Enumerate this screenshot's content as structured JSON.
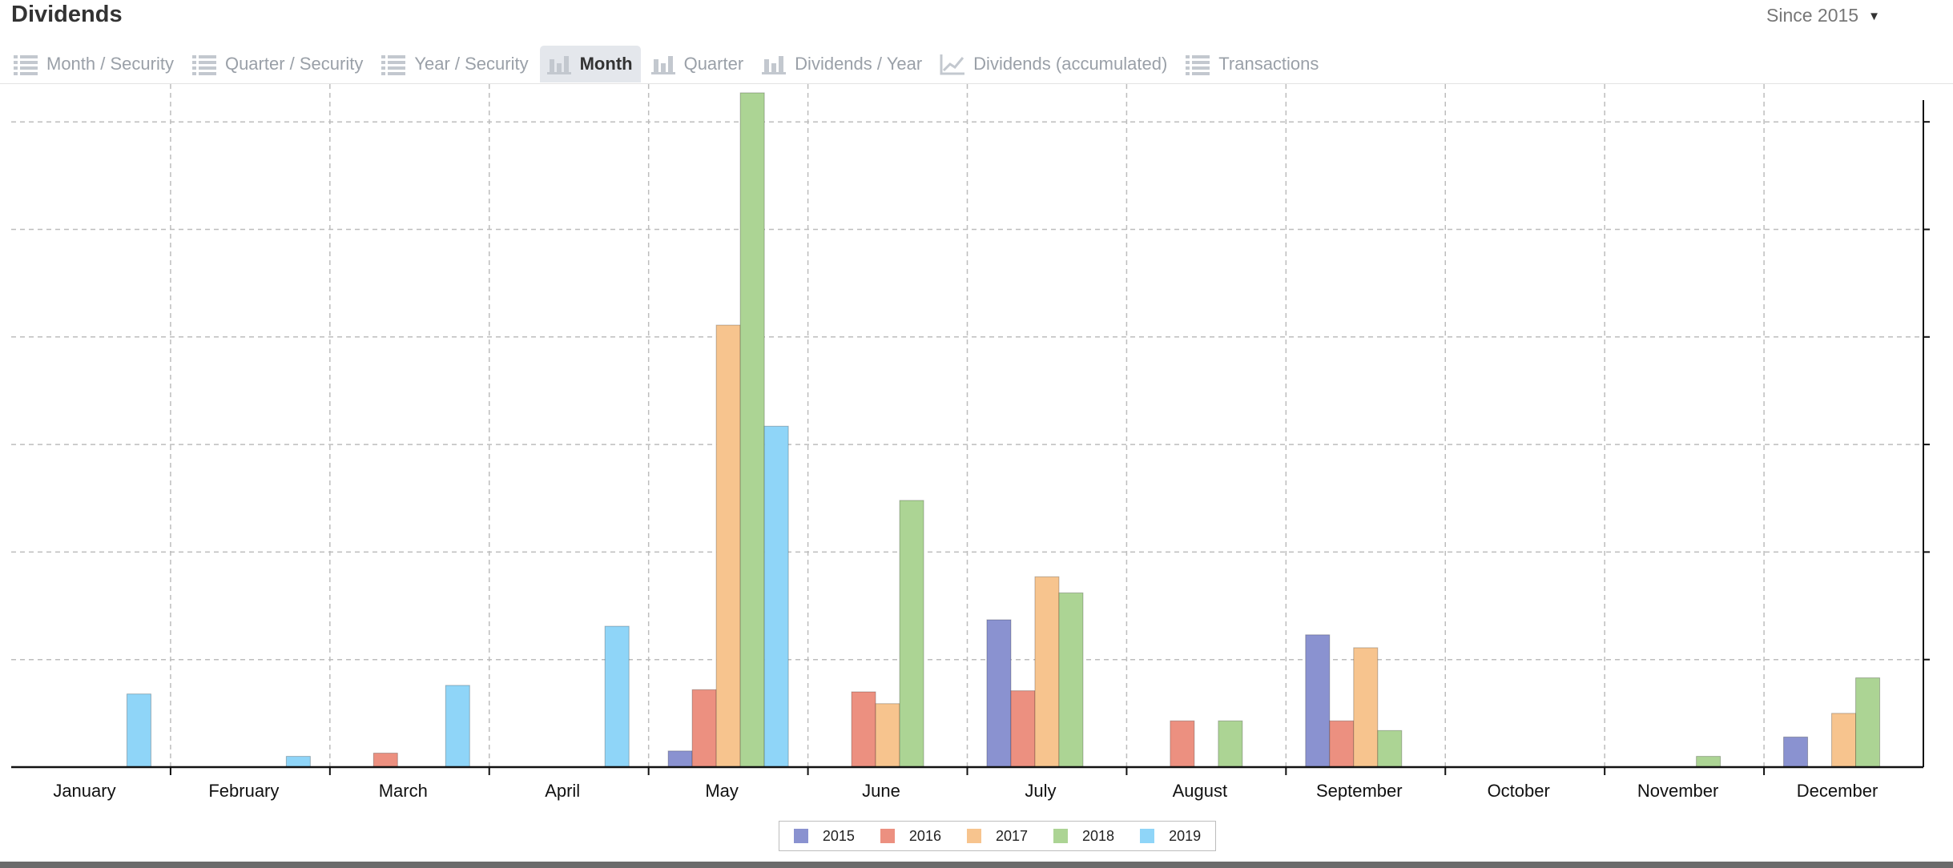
{
  "header": {
    "title": "Dividends",
    "period_label": "Since 2015",
    "period_caret": "▼"
  },
  "tabs": [
    {
      "label": "Month / Security",
      "icon": "list-icon",
      "active": false
    },
    {
      "label": "Quarter / Security",
      "icon": "list-icon",
      "active": false
    },
    {
      "label": "Year / Security",
      "icon": "list-icon",
      "active": false
    },
    {
      "label": "Month",
      "icon": "bar-chart-icon",
      "active": true
    },
    {
      "label": "Quarter",
      "icon": "bar-chart-icon",
      "active": false
    },
    {
      "label": "Dividends / Year",
      "icon": "bar-chart-icon",
      "active": false
    },
    {
      "label": "Dividends (accumulated)",
      "icon": "line-chart-icon",
      "active": false
    },
    {
      "label": "Transactions",
      "icon": "list-icon",
      "active": false
    }
  ],
  "colors": {
    "2015": "#8a92d0",
    "2016": "#ec9080",
    "2017": "#f7c48e",
    "2018": "#acd494",
    "2019": "#8fd5f8",
    "grid": "#bdbdbd",
    "axis": "#111111"
  },
  "chart_data": {
    "type": "bar",
    "categories": [
      "January",
      "February",
      "March",
      "April",
      "May",
      "June",
      "July",
      "August",
      "September",
      "October",
      "November",
      "December"
    ],
    "series": [
      {
        "name": "2015",
        "values": [
          0,
          0,
          0,
          0,
          0.15,
          0,
          1.37,
          0,
          1.23,
          0,
          0,
          0.28
        ]
      },
      {
        "name": "2016",
        "values": [
          0,
          0,
          0.13,
          0,
          0.72,
          0.7,
          0.71,
          0.43,
          0.43,
          0,
          0,
          0
        ]
      },
      {
        "name": "2017",
        "values": [
          0,
          0,
          0,
          0,
          4.11,
          0.59,
          1.77,
          0,
          1.11,
          0,
          0,
          0.5
        ]
      },
      {
        "name": "2018",
        "values": [
          0,
          0,
          0,
          0,
          6.27,
          2.48,
          1.62,
          0.43,
          0.34,
          0,
          0.1,
          0.83
        ]
      },
      {
        "name": "2019",
        "values": [
          0.68,
          0.1,
          0.76,
          1.31,
          3.17,
          0,
          0,
          0,
          0,
          0,
          0,
          0
        ]
      }
    ],
    "ylim": [
      0,
      6.4
    ],
    "y_gridlines": [
      1,
      2,
      3,
      4,
      5,
      6
    ],
    "grid": true,
    "y_tick_labels_visible": false,
    "legend_position": "bottom-center"
  }
}
